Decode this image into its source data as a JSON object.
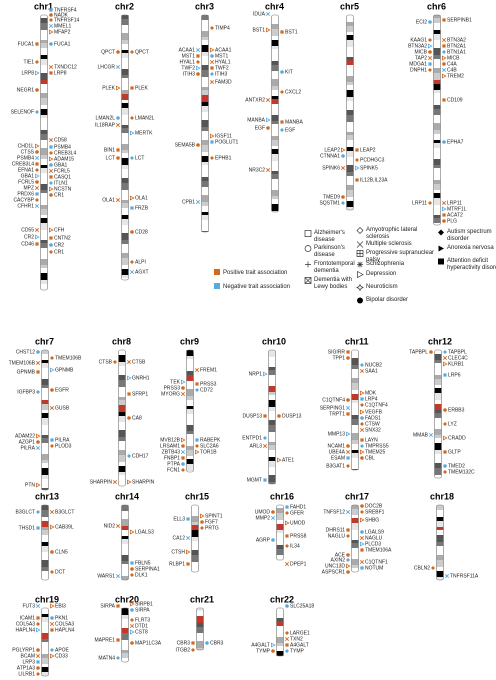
{
  "chromosomes": [
    {
      "name": "chr1",
      "genes": [
        "TNFRSF4",
        "NADK",
        "TNFRSF14",
        "MMEL1",
        "MFAP2",
        "FUCA1",
        "FUCA1",
        "TIE1",
        "TXNDC12",
        "LRP8",
        "LRP8",
        "NEGR1",
        "SELENOF",
        "CD58",
        "CHD1L",
        "PSMB4",
        "CTSS",
        "CREB3L4",
        "PSMB4",
        "ADAM15",
        "CREB3L4",
        "GBA1",
        "EFNA1",
        "FCRL5",
        "GBA1",
        "CASQ1",
        "FCRL5",
        "ITLN1",
        "MPZ",
        "NCSTN",
        "PRDX6",
        "CR1",
        "CACYBP",
        "CFHR1",
        "CFH",
        "CNTN2",
        "CR2",
        "CR1",
        "CD55",
        "CR2",
        "CD46"
      ]
    },
    {
      "name": "chr2",
      "genes": [
        "QPCT",
        "QPCT",
        "LHCGR",
        "PLEK",
        "PLEK",
        "LMAN2L",
        "LMAN2L",
        "IL18RAP",
        "MERTK",
        "BIN1",
        "LCT",
        "LCT",
        "OLA1",
        "OLA1",
        "FRZB",
        "CD28",
        "ALPI",
        "AGXT"
      ]
    },
    {
      "name": "chr3",
      "genes": [
        "TIMP4",
        "ACAA1",
        "ACAA1",
        "MST1",
        "MST1",
        "HYAL1",
        "HYAL1",
        "TWF2",
        "TWF2",
        "ITIH3",
        "ITIH3",
        "FAM3D",
        "IGSF11",
        "POGLUT1",
        "SEMA5B",
        "EPHB1",
        "CPB1"
      ]
    },
    {
      "name": "chr4",
      "genes": [
        "IDUA",
        "BST1",
        "BST1",
        "KIT",
        "CXCL2",
        "ANTXR2",
        "MANBA",
        "MANBA",
        "EGF",
        "EGF",
        "NR3C2"
      ]
    },
    {
      "name": "chr5",
      "genes": [
        "LEAP2",
        "LEAP2",
        "CTNNA1",
        "PCDHGC3",
        "SPINK6",
        "SPINK5",
        "IL12B,IL23A",
        "TMED9",
        "SQSTM1"
      ]
    },
    {
      "name": "chr6",
      "genes": [
        "SERPINB1",
        "ECI2",
        "KAAG1",
        "BTN3A2",
        "BTN3A2",
        "BTN2A1",
        "MICB",
        "BTN1A1",
        "TAP2",
        "MICB",
        "MDGA1",
        "C4A",
        "DNPH1",
        "C4B",
        "TREM2",
        "CD109",
        "EPHA7",
        "LRP11",
        "LRP11",
        "MTRF1L",
        "ACAT2",
        "PLG"
      ]
    },
    {
      "name": "chr7",
      "genes": [
        "CHST12",
        "TMEM106B",
        "TMEM106B",
        "GPNMB",
        "GPNMB",
        "EGFR",
        "IGFBP3",
        "GUSB",
        "ADAM22",
        "PILRA",
        "AZGP1",
        "PLOD3",
        "PILRA",
        "PTN"
      ]
    },
    {
      "name": "chr8",
      "genes": [
        "CTSB",
        "CTSB",
        "GNRH1",
        "SFRP1",
        "CA8",
        "CDH17",
        "SHARPIN",
        "SHARPIN"
      ]
    },
    {
      "name": "chr9",
      "genes": [
        "FREM1",
        "TEK",
        "PRSS3",
        "PRSS3",
        "CD72",
        "MYORG",
        "MVB12B",
        "RABEPK",
        "LRSAM1",
        "SLC2A6",
        "ZBTB43",
        "TOR1B",
        "FNBP1",
        "PTPA",
        "FCN1"
      ]
    },
    {
      "name": "chr10",
      "genes": [
        "NRP1",
        "DUSP13",
        "DUSP13",
        "ENTPD1",
        "ARL3",
        "ATE1",
        "MGMT"
      ]
    },
    {
      "name": "chr11",
      "genes": [
        "SIGIRR",
        "TPP1",
        "NUCB2",
        "SAA1",
        "MDK",
        "LRP4",
        "C1QTNF4",
        "C1QTNF4",
        "SERPING1",
        "VEGFB",
        "TRPT1",
        "FADS1",
        "CTSW",
        "SNX32",
        "MMP13",
        "LAYN",
        "NCAM1",
        "TMPRSS5",
        "UBE4A",
        "TMEM25",
        "ESAM",
        "CBL",
        "B3GAT1"
      ]
    },
    {
      "name": "chr12",
      "genes": [
        "TAPBPL",
        "TAPBPL",
        "CLEC4C",
        "KLRB1",
        "LRP6",
        "ERBB3",
        "LYZ",
        "MMAB",
        "CRADD",
        "GLTP",
        "TMED2",
        "TMEM132C"
      ]
    },
    {
      "name": "chr13",
      "genes": [
        "B3GLCT",
        "B3GLCT",
        "CAB39L",
        "THSD1",
        "CLN5",
        "DCT"
      ]
    },
    {
      "name": "chr14",
      "genes": [
        "NID2",
        "LGALS3",
        "FBLN5",
        "SERPINA1",
        "DLK1",
        "WARS1"
      ]
    },
    {
      "name": "chr15",
      "genes": [
        "SPINT1",
        "ELL3",
        "FGF7",
        "PRTG",
        "CA12",
        "CTSH",
        "RLBP1"
      ]
    },
    {
      "name": "chr16",
      "genes": [
        "FAHD1",
        "UMOD",
        "GFER",
        "MMP2",
        "UMOD",
        "PRSS8",
        "AGRP",
        "IL34",
        "DPEP1"
      ]
    },
    {
      "name": "chr17",
      "genes": [
        "DOC2B",
        "SREBF1",
        "TNFSF12",
        "SHBG",
        "DHRS11",
        "LGALS9",
        "NAGLU",
        "NAGLU",
        "PLCD3",
        "TMEM106A",
        "ACE",
        "AXIN2",
        "C1QTNF1",
        "UNC13D",
        "NOTUM",
        "ASPSCR1"
      ]
    },
    {
      "name": "chr18",
      "genes": [
        "CBLN2",
        "TNFRSF11A"
      ]
    },
    {
      "name": "chr19",
      "genes": [
        "FUT3",
        "EBI3",
        "ICAM1",
        "PKN1",
        "COL5A3",
        "COL5A3",
        "HAPLN4",
        "HAPLN4",
        "PGLYRP1",
        "APOE",
        "BCAM",
        "CD33",
        "LRP3",
        "ATP1A3",
        "LILRB1"
      ]
    },
    {
      "name": "chr20",
      "genes": [
        "SIRPB1",
        "SIRPA",
        "SIRPA",
        "FLRT3",
        "DTD1",
        "CST8",
        "MAPRE1",
        "MAP1LC3A",
        "MATN4"
      ]
    },
    {
      "name": "chr21",
      "genes": [
        "CBR3",
        "CBR3",
        "ITGB2"
      ]
    },
    {
      "name": "chr22",
      "genes": [
        "SLC25A18",
        "LARGE1",
        "TXN2",
        "A4GALT",
        "A4GALT",
        "TYMP",
        "TYMP"
      ]
    }
  ],
  "legend": {
    "positive": "Positive trait association",
    "negative": "Negative trait association",
    "diseases": [
      "Alzheimer's disease",
      "Parkinson's disease",
      "Frontotemporal dementia",
      "Dementia with Lewy bodies",
      "Amyotrophic lateral sclerosis",
      "Multiple sclerosis",
      "Progressive supranuclear palsy",
      "Schizophrenia",
      "Depression",
      "Neuroticism",
      "Bipolar disorder",
      "Autism spectrum disorder",
      "Anorexia nervosa",
      "Attention deficit hyperactivity disorder"
    ]
  }
}
